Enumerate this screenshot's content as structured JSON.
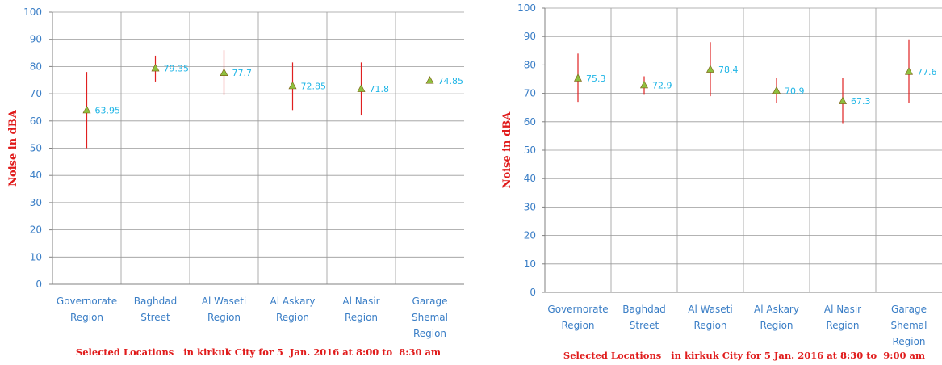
{
  "chart_data": [
    {
      "type": "scatter",
      "categories": [
        [
          "Governorate",
          "Region"
        ],
        [
          "Baghdad",
          "Street"
        ],
        [
          "Al Waseti",
          "Region"
        ],
        [
          "Al Askary",
          "Region"
        ],
        [
          "Al Nasir",
          "Region"
        ],
        [
          "Garage",
          "Shemal",
          "Region"
        ]
      ],
      "values": [
        63.95,
        79.35,
        77.7,
        72.85,
        71.8,
        74.85
      ],
      "labels": [
        "63.95",
        "79.35",
        "77.7",
        "72.85",
        "71.8",
        "74.85"
      ],
      "error_low": [
        50,
        74.5,
        69.5,
        64,
        62,
        74
      ],
      "error_high": [
        78,
        84,
        86,
        81.5,
        81.5,
        76
      ],
      "ylim": [
        0,
        100
      ],
      "yticks": [
        0,
        10,
        20,
        30,
        40,
        50,
        60,
        70,
        80,
        90,
        100
      ],
      "ylabel": "Noise in dBA",
      "xlabel": "Selected Locations   in kirkuk City for 5  Jan. 2016 at 8:00 to  8:30 am",
      "grid": true,
      "marker_color": "#8fbf3e",
      "error_color": "#e02020"
    },
    {
      "type": "scatter",
      "categories": [
        [
          "Governorate",
          "Region"
        ],
        [
          "Baghdad",
          "Street"
        ],
        [
          "Al Waseti",
          "Region"
        ],
        [
          "Al Askary",
          "Region"
        ],
        [
          "Al Nasir",
          "Region"
        ],
        [
          "Garage",
          "Shemal",
          "Region"
        ]
      ],
      "values": [
        75.3,
        72.9,
        78.4,
        70.9,
        67.3,
        77.6
      ],
      "labels": [
        "75.3",
        "72.9",
        "78.4",
        "70.9",
        "67.3",
        "77.6"
      ],
      "error_low": [
        67,
        69.5,
        69,
        66.5,
        59.5,
        66.5
      ],
      "error_high": [
        84,
        76,
        88,
        75.5,
        75.5,
        89
      ],
      "ylim": [
        0,
        100
      ],
      "yticks": [
        0,
        10,
        20,
        30,
        40,
        50,
        60,
        70,
        80,
        90,
        100
      ],
      "ylabel": "Noise in dBA",
      "xlabel": "Selected Locations   in kirkuk City for 5 Jan. 2016 at 8:30 to  9:00 am",
      "grid": true,
      "marker_color": "#8fbf3e",
      "error_color": "#e02020"
    }
  ]
}
